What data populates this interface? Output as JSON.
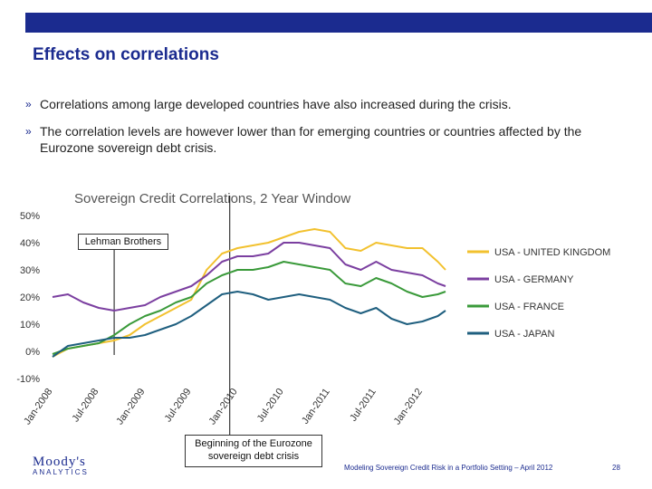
{
  "slide": {
    "title": "Effects on correlations",
    "bullets": [
      "Correlations among large developed countries have also increased during the crisis.",
      "The correlation levels are however lower than for emerging countries or countries affected by the Eurozone sovereign debt crisis."
    ],
    "bullet_marker": "»"
  },
  "annotations": {
    "lehman": "Lehman Brothers",
    "eurozone_line1": "Beginning of the Eurozone",
    "eurozone_line2": "sovereign debt crisis"
  },
  "footer": {
    "logo_main": "Moody's",
    "logo_sub": "ANALYTICS",
    "text": "Modeling Sovereign Credit Risk in a Portfolio Setting – April 2012",
    "page": "28"
  },
  "colors": {
    "title": "#1b2b8f",
    "uk": "#f2c12e",
    "germany": "#7b3fa0",
    "france": "#3a9a3a",
    "japan": "#1f5f7f"
  },
  "chart_data": {
    "type": "line",
    "title": "Sovereign Credit Correlations, 2 Year Window",
    "ylim": [
      -10,
      50
    ],
    "yticks": [
      "-10%",
      "0%",
      "10%",
      "20%",
      "30%",
      "40%",
      "50%"
    ],
    "xlim": [
      "2008-01",
      "2012-04"
    ],
    "xticks": [
      "Jan-2008",
      "Jul-2008",
      "Jan-2009",
      "Jul-2009",
      "Jan-2010",
      "Jul-2010",
      "Jan-2011",
      "Jul-2011",
      "Jan-2012"
    ],
    "events": [
      {
        "label": "Lehman Brothers",
        "x": "2008-09"
      },
      {
        "label": "Beginning of the Eurozone sovereign debt crisis",
        "x": "2009-12"
      }
    ],
    "series": [
      {
        "name": "USA - UNITED KINGDOM",
        "color": "#f2c12e",
        "x": [
          "2008-01",
          "2008-03",
          "2008-05",
          "2008-07",
          "2008-09",
          "2008-11",
          "2009-01",
          "2009-03",
          "2009-05",
          "2009-07",
          "2009-09",
          "2009-11",
          "2010-01",
          "2010-03",
          "2010-05",
          "2010-07",
          "2010-09",
          "2010-11",
          "2011-01",
          "2011-03",
          "2011-05",
          "2011-07",
          "2011-09",
          "2011-11",
          "2012-01",
          "2012-03",
          "2012-04"
        ],
        "values": [
          -2,
          1,
          2,
          3,
          4,
          6,
          10,
          13,
          16,
          19,
          30,
          36,
          38,
          39,
          40,
          42,
          44,
          45,
          44,
          38,
          37,
          40,
          39,
          38,
          38,
          33,
          30
        ]
      },
      {
        "name": "USA - GERMANY",
        "color": "#7b3fa0",
        "x": [
          "2008-01",
          "2008-03",
          "2008-05",
          "2008-07",
          "2008-09",
          "2008-11",
          "2009-01",
          "2009-03",
          "2009-05",
          "2009-07",
          "2009-09",
          "2009-11",
          "2010-01",
          "2010-03",
          "2010-05",
          "2010-07",
          "2010-09",
          "2010-11",
          "2011-01",
          "2011-03",
          "2011-05",
          "2011-07",
          "2011-09",
          "2011-11",
          "2012-01",
          "2012-03",
          "2012-04"
        ],
        "values": [
          20,
          21,
          18,
          16,
          15,
          16,
          17,
          20,
          22,
          24,
          28,
          33,
          35,
          35,
          36,
          40,
          40,
          39,
          38,
          32,
          30,
          33,
          30,
          29,
          28,
          25,
          24
        ]
      },
      {
        "name": "USA - FRANCE",
        "color": "#3a9a3a",
        "x": [
          "2008-01",
          "2008-03",
          "2008-05",
          "2008-07",
          "2008-09",
          "2008-11",
          "2009-01",
          "2009-03",
          "2009-05",
          "2009-07",
          "2009-09",
          "2009-11",
          "2010-01",
          "2010-03",
          "2010-05",
          "2010-07",
          "2010-09",
          "2010-11",
          "2011-01",
          "2011-03",
          "2011-05",
          "2011-07",
          "2011-09",
          "2011-11",
          "2012-01",
          "2012-03",
          "2012-04"
        ],
        "values": [
          -1,
          1,
          2,
          3,
          6,
          10,
          13,
          15,
          18,
          20,
          25,
          28,
          30,
          30,
          31,
          33,
          32,
          31,
          30,
          25,
          24,
          27,
          25,
          22,
          20,
          21,
          22
        ]
      },
      {
        "name": "USA - JAPAN",
        "color": "#1f5f7f",
        "x": [
          "2008-01",
          "2008-03",
          "2008-05",
          "2008-07",
          "2008-09",
          "2008-11",
          "2009-01",
          "2009-03",
          "2009-05",
          "2009-07",
          "2009-09",
          "2009-11",
          "2010-01",
          "2010-03",
          "2010-05",
          "2010-07",
          "2010-09",
          "2010-11",
          "2011-01",
          "2011-03",
          "2011-05",
          "2011-07",
          "2011-09",
          "2011-11",
          "2012-01",
          "2012-03",
          "2012-04"
        ],
        "values": [
          -2,
          2,
          3,
          4,
          5,
          5,
          6,
          8,
          10,
          13,
          17,
          21,
          22,
          21,
          19,
          20,
          21,
          20,
          19,
          16,
          14,
          16,
          12,
          10,
          11,
          13,
          15
        ]
      }
    ]
  }
}
